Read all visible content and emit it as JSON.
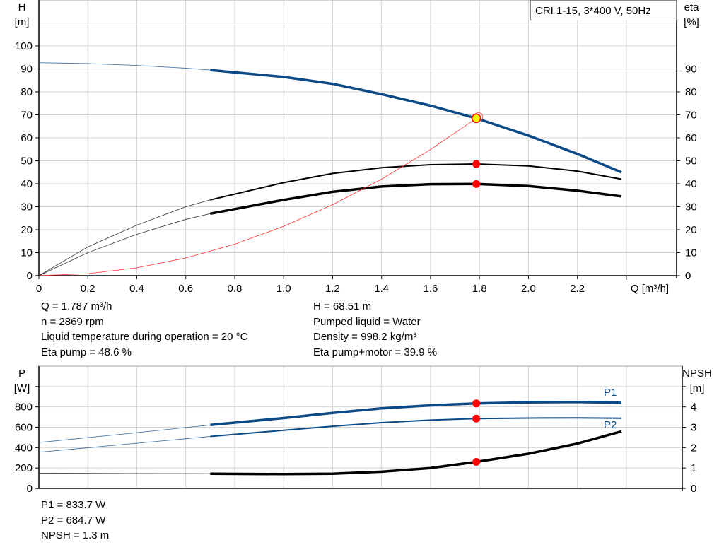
{
  "chart_data": [
    {
      "type": "line",
      "title": "CRI 1-15, 3*400 V, 50Hz",
      "xlabel": "Q [m³/h]",
      "ylabel_left": [
        "H",
        "[m]"
      ],
      "ylabel_right": [
        "eta",
        "[%]"
      ],
      "xlim": [
        0,
        2.6
      ],
      "ylim_left": [
        0,
        120
      ],
      "ylim_right": [
        0,
        120
      ],
      "x_ticks": [
        "0",
        "0.2",
        "0.4",
        "0.6",
        "0.8",
        "1.0",
        "1.2",
        "1.4",
        "1.6",
        "1.8",
        "2.0",
        "2.2"
      ],
      "y_ticks_left": [
        "0",
        "10",
        "20",
        "30",
        "40",
        "50",
        "60",
        "70",
        "80",
        "90",
        "100"
      ],
      "y_ticks_right": [
        "0",
        "10",
        "20",
        "30",
        "40",
        "50",
        "60",
        "70",
        "80",
        "90"
      ],
      "grid": true,
      "series": [
        {
          "id": "H",
          "axis": "left",
          "color": "#0b4a86",
          "thin_until": 0.7,
          "x": [
            0,
            0.2,
            0.4,
            0.6,
            0.7,
            1.0,
            1.2,
            1.4,
            1.6,
            1.787,
            2.0,
            2.2,
            2.38
          ],
          "y": [
            92.7,
            92.3,
            91.5,
            90.3,
            89.5,
            86.5,
            83.5,
            79,
            74,
            68.5,
            61,
            53,
            45
          ]
        },
        {
          "id": "eta_pump",
          "axis": "right",
          "color": "#000000",
          "thin_until": 0.7,
          "x": [
            0,
            0.2,
            0.4,
            0.6,
            0.7,
            1.0,
            1.2,
            1.4,
            1.6,
            1.787,
            2.0,
            2.2,
            2.38
          ],
          "y": [
            0,
            12.5,
            22,
            30,
            33,
            40.5,
            44.5,
            47,
            48.3,
            48.6,
            47.8,
            45.5,
            42
          ]
        },
        {
          "id": "eta_pump_motor",
          "axis": "right",
          "color": "#000000",
          "thin_until": 0.7,
          "x": [
            0,
            0.2,
            0.4,
            0.6,
            0.7,
            1.0,
            1.2,
            1.4,
            1.6,
            1.787,
            2.0,
            2.2,
            2.38
          ],
          "y": [
            0,
            10,
            18,
            24.5,
            27,
            33,
            36.5,
            38.8,
            39.8,
            39.9,
            39,
            37,
            34.5
          ]
        },
        {
          "id": "system_curve",
          "axis": "left",
          "color": "#ff3030",
          "thin_until": 1.8,
          "x": [
            0,
            0.2,
            0.4,
            0.6,
            0.8,
            1.0,
            1.2,
            1.4,
            1.6,
            1.787
          ],
          "y": [
            0,
            0.86,
            3.4,
            7.7,
            13.7,
            21.5,
            30.9,
            42,
            54.9,
            68.5
          ]
        }
      ],
      "operating_points": [
        {
          "x": 1.787,
          "y": 68.51,
          "style": "yellow"
        },
        {
          "x": 1.787,
          "y": 48.6,
          "style": "red"
        },
        {
          "x": 1.787,
          "y": 39.9,
          "style": "red"
        }
      ]
    },
    {
      "type": "line",
      "ylabel_left": [
        "P",
        "[W]"
      ],
      "ylabel_right": [
        "NPSH",
        "[m]"
      ],
      "xlim": [
        0,
        2.6
      ],
      "ylim_left": [
        0,
        1200
      ],
      "ylim_right": [
        0,
        6
      ],
      "y_ticks_left": [
        "0",
        "200",
        "400",
        "600",
        "800"
      ],
      "y_ticks_right": [
        "0",
        "1",
        "2",
        "3",
        "4"
      ],
      "grid": true,
      "series": [
        {
          "id": "P1",
          "name": "P1",
          "axis": "left",
          "color": "#0b4a86",
          "thin_until": 0.7,
          "x": [
            0,
            0.35,
            0.7,
            1.0,
            1.2,
            1.4,
            1.6,
            1.787,
            2.0,
            2.2,
            2.38
          ],
          "y": [
            450,
            535,
            622,
            690,
            740,
            785,
            815,
            833.7,
            845,
            848,
            840
          ]
        },
        {
          "id": "P2",
          "name": "P2",
          "axis": "left",
          "color": "#0b4a86",
          "thin_until": 0.7,
          "thin_main": true,
          "x": [
            0,
            0.35,
            0.7,
            1.0,
            1.2,
            1.4,
            1.6,
            1.787,
            2.0,
            2.2,
            2.38
          ],
          "y": [
            355,
            432,
            510,
            570,
            610,
            645,
            670,
            684.7,
            690,
            692,
            688
          ]
        },
        {
          "id": "NPSH",
          "axis": "right",
          "color": "#000000",
          "thin_until": 0.7,
          "x": [
            0,
            0.35,
            0.7,
            1.0,
            1.2,
            1.4,
            1.6,
            1.787,
            2.0,
            2.2,
            2.38
          ],
          "y": [
            0.75,
            0.73,
            0.72,
            0.7,
            0.72,
            0.82,
            1.0,
            1.3,
            1.7,
            2.2,
            2.8
          ]
        }
      ],
      "operating_points": [
        {
          "x": 1.787,
          "y": 833.7,
          "axis": "left"
        },
        {
          "x": 1.787,
          "y": 684.7,
          "axis": "left"
        },
        {
          "x": 1.787,
          "y": 1.3,
          "axis": "right"
        }
      ]
    }
  ],
  "info_top": {
    "left": [
      "Q = 1.787 m³/h",
      "n = 2869 rpm",
      "Liquid temperature during operation = 20 °C",
      "Eta pump = 48.6 %"
    ],
    "right": [
      "H = 68.51 m",
      "Pumped liquid = Water",
      "Density = 998.2 kg/m³",
      "Eta pump+motor = 39.9 %"
    ]
  },
  "info_bottom": [
    "P1 = 833.7 W",
    "P2 = 684.7 W",
    "NPSH = 1.3 m"
  ],
  "colors": {
    "blue": "#0b4a86",
    "red": "#ff0000",
    "yellow": "#ffff00",
    "grid": "#d4d4d4"
  }
}
